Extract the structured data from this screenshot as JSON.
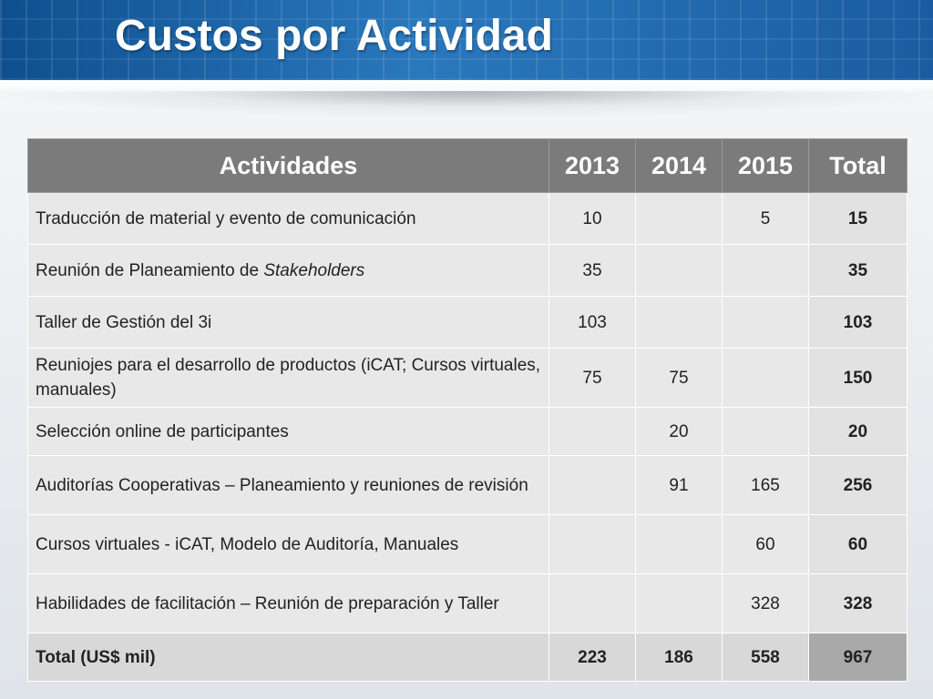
{
  "slide": {
    "title": "Custos por Actividad"
  },
  "table": {
    "headers": [
      "Actividades",
      "2013",
      "2014",
      "2015",
      "Total"
    ],
    "rows": [
      {
        "activity": "Traducción de material y evento de comunicación",
        "y2013": "10",
        "y2014": "",
        "y2015": "5",
        "total": "15"
      },
      {
        "activity_plain": "Reunión de Planeamiento de ",
        "activity_italic": "Stakeholders",
        "y2013": "35",
        "y2014": "",
        "y2015": "",
        "total": "35"
      },
      {
        "activity": "Taller de Gestión del 3i",
        "y2013": "103",
        "y2014": "",
        "y2015": "",
        "total": "103"
      },
      {
        "activity": "Reuniojes para el desarrollo de productos (iCAT; Cursos virtuales, manuales)",
        "y2013": "75",
        "y2014": "75",
        "y2015": "",
        "total": "150"
      },
      {
        "activity": "Selección online de participantes",
        "y2013": "",
        "y2014": "20",
        "y2015": "",
        "total": "20"
      },
      {
        "activity": "Auditorías Cooperativas – Planeamiento y reuniones de revisión",
        "y2013": "",
        "y2014": "91",
        "y2015": "165",
        "total": "256"
      },
      {
        "activity": "Cursos virtuales - iCAT, Modelo de Auditoría, Manuales",
        "y2013": "",
        "y2014": "",
        "y2015": "60",
        "total": "60"
      },
      {
        "activity": "Habilidades de facilitación – Reunión de preparación y Taller",
        "y2013": "",
        "y2014": "",
        "y2015": "328",
        "total": "328"
      }
    ],
    "total_row": {
      "label": "Total (US$ mil)",
      "y2013": "223",
      "y2014": "186",
      "y2015": "558",
      "total": "967"
    }
  },
  "colors": {
    "header_bar": "#1c63a6",
    "table_header": "#7b7b7b",
    "table_cell": "#e8e8e8",
    "grand_total_cell": "#a9a9a9"
  }
}
